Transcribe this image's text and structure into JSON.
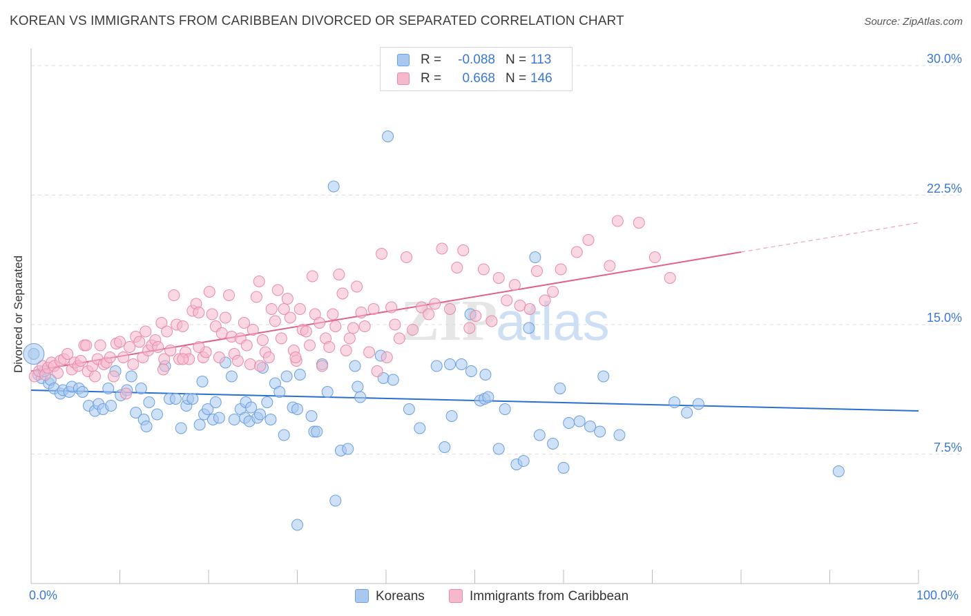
{
  "title": "KOREAN VS IMMIGRANTS FROM CARIBBEAN DIVORCED OR SEPARATED CORRELATION CHART",
  "source": "Source: ZipAtlas.com",
  "watermark": "ZIPatlas",
  "legend": {
    "rows": [
      {
        "r_label": "R =",
        "r_value": "-0.088",
        "n_label": "N =",
        "n_value": "113",
        "color": "#a8c8f0",
        "border": "#6a9fe0"
      },
      {
        "r_label": "R =",
        "r_value": "0.668",
        "n_label": "N =",
        "n_value": "146",
        "color": "#f6b8cc",
        "border": "#e98aa8"
      }
    ]
  },
  "bottom_legend": [
    {
      "label": "Koreans",
      "color": "#a8c8f0",
      "border": "#6a9fe0"
    },
    {
      "label": "Immigrants from Caribbean",
      "color": "#f6b8cc",
      "border": "#e98aa8"
    }
  ],
  "axes": {
    "x_min_label": "0.0%",
    "x_max_label": "100.0%",
    "y_ticks": [
      "7.5%",
      "15.0%",
      "22.5%",
      "30.0%"
    ]
  },
  "chart_data": {
    "type": "scatter",
    "title": "KOREAN VS IMMIGRANTS FROM CARIBBEAN DIVORCED OR SEPARATED CORRELATION CHART",
    "xlabel": "",
    "ylabel": "Divorced or Separated",
    "xlim": [
      0,
      100
    ],
    "ylim": [
      0,
      31
    ],
    "y_ticks": [
      7.5,
      15.0,
      22.5,
      30.0
    ],
    "grid": "horizontal dashed",
    "legend_position": "top-center",
    "series": [
      {
        "name": "Koreans",
        "color": "#6a9fe0",
        "fill": "#a8c8f0",
        "r": -0.088,
        "n": 113,
        "trend": {
          "x0": 0,
          "y0": 11.2,
          "x1": 100,
          "y1": 10.0
        },
        "points": [
          [
            0.3,
            13.3
          ],
          [
            0.8,
            12.1
          ],
          [
            1.2,
            11.9
          ],
          [
            1.5,
            12.3
          ],
          [
            2.0,
            11.6
          ],
          [
            2.2,
            11.8
          ],
          [
            2.6,
            11.3
          ],
          [
            3.3,
            11.0
          ],
          [
            3.6,
            11.2
          ],
          [
            4.3,
            11.1
          ],
          [
            4.6,
            11.4
          ],
          [
            5.4,
            11.3
          ],
          [
            5.8,
            11.1
          ],
          [
            6.5,
            10.3
          ],
          [
            7.2,
            10.0
          ],
          [
            7.6,
            10.4
          ],
          [
            8.1,
            10.1
          ],
          [
            8.7,
            11.3
          ],
          [
            9.0,
            10.3
          ],
          [
            9.5,
            12.3
          ],
          [
            10.1,
            10.9
          ],
          [
            10.8,
            11.2
          ],
          [
            11.3,
            12.0
          ],
          [
            11.8,
            9.9
          ],
          [
            12.4,
            11.3
          ],
          [
            12.7,
            9.5
          ],
          [
            13.0,
            9.1
          ],
          [
            13.3,
            10.5
          ],
          [
            14.2,
            9.8
          ],
          [
            15.1,
            12.6
          ],
          [
            15.6,
            10.7
          ],
          [
            16.3,
            10.7
          ],
          [
            16.9,
            9.0
          ],
          [
            17.5,
            10.3
          ],
          [
            17.7,
            10.7
          ],
          [
            18.2,
            10.7
          ],
          [
            19.0,
            9.2
          ],
          [
            19.3,
            11.7
          ],
          [
            19.5,
            9.8
          ],
          [
            19.9,
            10.1
          ],
          [
            20.5,
            9.5
          ],
          [
            20.8,
            10.5
          ],
          [
            21.2,
            9.6
          ],
          [
            21.9,
            12.8
          ],
          [
            22.6,
            12.0
          ],
          [
            22.9,
            9.5
          ],
          [
            23.6,
            10.1
          ],
          [
            24.1,
            9.6
          ],
          [
            24.2,
            10.5
          ],
          [
            24.6,
            9.4
          ],
          [
            24.8,
            10.2
          ],
          [
            25.5,
            9.6
          ],
          [
            25.8,
            9.8
          ],
          [
            26.1,
            12.5
          ],
          [
            26.6,
            10.5
          ],
          [
            27.0,
            9.5
          ],
          [
            27.5,
            11.6
          ],
          [
            28.0,
            11.1
          ],
          [
            28.5,
            8.6
          ],
          [
            28.8,
            12.0
          ],
          [
            29.5,
            10.2
          ],
          [
            30.0,
            10.1
          ],
          [
            30.3,
            12.1
          ],
          [
            31.6,
            9.7
          ],
          [
            31.9,
            8.8
          ],
          [
            32.2,
            8.8
          ],
          [
            32.8,
            12.7
          ],
          [
            33.4,
            11.1
          ],
          [
            34.1,
            23.0
          ],
          [
            34.3,
            4.8
          ],
          [
            34.9,
            7.7
          ],
          [
            35.7,
            7.8
          ],
          [
            36.5,
            12.6
          ],
          [
            36.8,
            11.4
          ],
          [
            37.1,
            10.8
          ],
          [
            39.7,
            11.9
          ],
          [
            40.2,
            25.9
          ],
          [
            40.8,
            11.8
          ],
          [
            42.6,
            10.1
          ],
          [
            43.8,
            9.0
          ],
          [
            45.7,
            12.6
          ],
          [
            46.6,
            7.9
          ],
          [
            47.2,
            12.7
          ],
          [
            47.4,
            9.7
          ],
          [
            48.5,
            12.7
          ],
          [
            49.5,
            15.6
          ],
          [
            49.6,
            12.3
          ],
          [
            50.6,
            10.6
          ],
          [
            51.1,
            10.7
          ],
          [
            51.2,
            12.1
          ],
          [
            51.5,
            10.8
          ],
          [
            52.7,
            7.8
          ],
          [
            53.4,
            10.1
          ],
          [
            54.7,
            6.9
          ],
          [
            55.5,
            7.1
          ],
          [
            56.1,
            14.8
          ],
          [
            56.8,
            18.9
          ],
          [
            57.3,
            8.6
          ],
          [
            58.8,
            8.1
          ],
          [
            59.6,
            11.3
          ],
          [
            60.0,
            6.7
          ],
          [
            60.6,
            9.3
          ],
          [
            61.8,
            9.4
          ],
          [
            63.0,
            9.1
          ],
          [
            64.1,
            8.8
          ],
          [
            64.5,
            12.0
          ],
          [
            66.3,
            8.6
          ],
          [
            72.5,
            10.5
          ],
          [
            73.9,
            9.9
          ],
          [
            75.2,
            10.4
          ],
          [
            91.0,
            6.5
          ],
          [
            39.4,
            13.2
          ],
          [
            30.0,
            3.4
          ]
        ]
      },
      {
        "name": "Immigrants from Caribbean",
        "color": "#e98aa8",
        "fill": "#f6b8cc",
        "r": 0.668,
        "n": 146,
        "trend": {
          "x0": 0,
          "y0": 12.3,
          "x1": 80,
          "y1": 19.2,
          "dashed_to": {
            "x": 100,
            "y": 20.9
          }
        },
        "points": [
          [
            0.4,
            12.0
          ],
          [
            0.9,
            12.3
          ],
          [
            1.3,
            12.6
          ],
          [
            1.6,
            12.1
          ],
          [
            1.9,
            12.5
          ],
          [
            2.3,
            12.8
          ],
          [
            2.6,
            12.6
          ],
          [
            3.0,
            12.2
          ],
          [
            3.3,
            12.9
          ],
          [
            3.7,
            13.0
          ],
          [
            4.1,
            13.3
          ],
          [
            4.6,
            12.4
          ],
          [
            4.9,
            12.8
          ],
          [
            5.3,
            12.6
          ],
          [
            5.6,
            12.9
          ],
          [
            6.0,
            13.8
          ],
          [
            6.4,
            12.3
          ],
          [
            6.9,
            12.6
          ],
          [
            7.2,
            12.0
          ],
          [
            7.5,
            13.0
          ],
          [
            7.8,
            13.8
          ],
          [
            8.2,
            12.7
          ],
          [
            8.5,
            12.8
          ],
          [
            8.9,
            13.1
          ],
          [
            9.3,
            12.0
          ],
          [
            9.6,
            13.9
          ],
          [
            10.0,
            14.0
          ],
          [
            10.4,
            13.1
          ],
          [
            10.7,
            11.0
          ],
          [
            11.1,
            13.7
          ],
          [
            11.5,
            12.7
          ],
          [
            11.8,
            14.3
          ],
          [
            12.2,
            14.0
          ],
          [
            12.6,
            13.1
          ],
          [
            12.9,
            14.6
          ],
          [
            13.2,
            13.5
          ],
          [
            13.6,
            13.8
          ],
          [
            14.0,
            14.1
          ],
          [
            14.3,
            13.7
          ],
          [
            14.7,
            15.1
          ],
          [
            15.0,
            13.0
          ],
          [
            15.3,
            14.6
          ],
          [
            15.7,
            13.5
          ],
          [
            16.1,
            16.7
          ],
          [
            16.4,
            15.0
          ],
          [
            16.7,
            13.0
          ],
          [
            17.1,
            14.9
          ],
          [
            17.4,
            13.4
          ],
          [
            17.8,
            13.0
          ],
          [
            18.2,
            15.8
          ],
          [
            18.6,
            16.2
          ],
          [
            18.9,
            15.7
          ],
          [
            19.4,
            13.1
          ],
          [
            19.7,
            13.4
          ],
          [
            20.1,
            16.9
          ],
          [
            20.4,
            15.6
          ],
          [
            20.8,
            14.9
          ],
          [
            21.2,
            13.1
          ],
          [
            21.5,
            14.5
          ],
          [
            21.9,
            15.4
          ],
          [
            22.3,
            16.7
          ],
          [
            22.6,
            14.3
          ],
          [
            22.9,
            13.3
          ],
          [
            23.3,
            12.9
          ],
          [
            23.6,
            14.2
          ],
          [
            24.0,
            15.1
          ],
          [
            24.3,
            13.8
          ],
          [
            24.7,
            12.7
          ],
          [
            25.0,
            14.7
          ],
          [
            25.4,
            16.6
          ],
          [
            25.7,
            17.5
          ],
          [
            26.1,
            14.1
          ],
          [
            26.4,
            13.4
          ],
          [
            26.8,
            13.1
          ],
          [
            27.1,
            15.9
          ],
          [
            27.5,
            15.2
          ],
          [
            27.8,
            17.0
          ],
          [
            28.2,
            14.2
          ],
          [
            28.5,
            15.9
          ],
          [
            28.9,
            16.5
          ],
          [
            29.2,
            15.4
          ],
          [
            29.6,
            13.5
          ],
          [
            29.9,
            12.9
          ],
          [
            30.3,
            15.9
          ],
          [
            30.6,
            14.7
          ],
          [
            31.0,
            14.6
          ],
          [
            31.4,
            13.8
          ],
          [
            31.7,
            17.8
          ],
          [
            32.0,
            15.6
          ],
          [
            32.5,
            15.1
          ],
          [
            32.8,
            12.6
          ],
          [
            33.2,
            14.2
          ],
          [
            33.6,
            13.7
          ],
          [
            34.0,
            15.6
          ],
          [
            34.3,
            14.9
          ],
          [
            34.7,
            17.9
          ],
          [
            35.1,
            16.8
          ],
          [
            35.5,
            13.5
          ],
          [
            35.9,
            14.2
          ],
          [
            36.3,
            14.8
          ],
          [
            36.7,
            17.2
          ],
          [
            37.2,
            15.7
          ],
          [
            37.6,
            14.9
          ],
          [
            38.1,
            13.4
          ],
          [
            38.6,
            15.9
          ],
          [
            39.0,
            12.3
          ],
          [
            39.5,
            19.1
          ],
          [
            40.1,
            13.1
          ],
          [
            40.6,
            16.0
          ],
          [
            41.0,
            15.0
          ],
          [
            41.5,
            14.2
          ],
          [
            42.3,
            18.9
          ],
          [
            43.0,
            14.7
          ],
          [
            44.0,
            16.0
          ],
          [
            44.8,
            15.6
          ],
          [
            45.5,
            16.2
          ],
          [
            46.3,
            19.4
          ],
          [
            47.2,
            15.9
          ],
          [
            48.0,
            18.3
          ],
          [
            48.7,
            19.3
          ],
          [
            49.4,
            14.8
          ],
          [
            50.1,
            15.5
          ],
          [
            51.0,
            18.2
          ],
          [
            51.9,
            15.2
          ],
          [
            52.7,
            17.7
          ],
          [
            53.6,
            16.4
          ],
          [
            54.5,
            17.3
          ],
          [
            55.1,
            16.1
          ],
          [
            56.2,
            15.9
          ],
          [
            57.0,
            18.1
          ],
          [
            57.9,
            16.4
          ],
          [
            58.8,
            16.9
          ],
          [
            59.7,
            18.2
          ],
          [
            61.5,
            19.2
          ],
          [
            62.8,
            19.9
          ],
          [
            65.2,
            18.4
          ],
          [
            66.1,
            21.0
          ],
          [
            68.5,
            20.9
          ],
          [
            70.3,
            18.9
          ],
          [
            72.0,
            17.7
          ],
          [
            6.2,
            13.8
          ],
          [
            18.9,
            13.7
          ],
          [
            29.8,
            13.1
          ],
          [
            17.1,
            13.0
          ],
          [
            14.9,
            12.4
          ],
          [
            25.8,
            12.6
          ]
        ]
      }
    ]
  }
}
